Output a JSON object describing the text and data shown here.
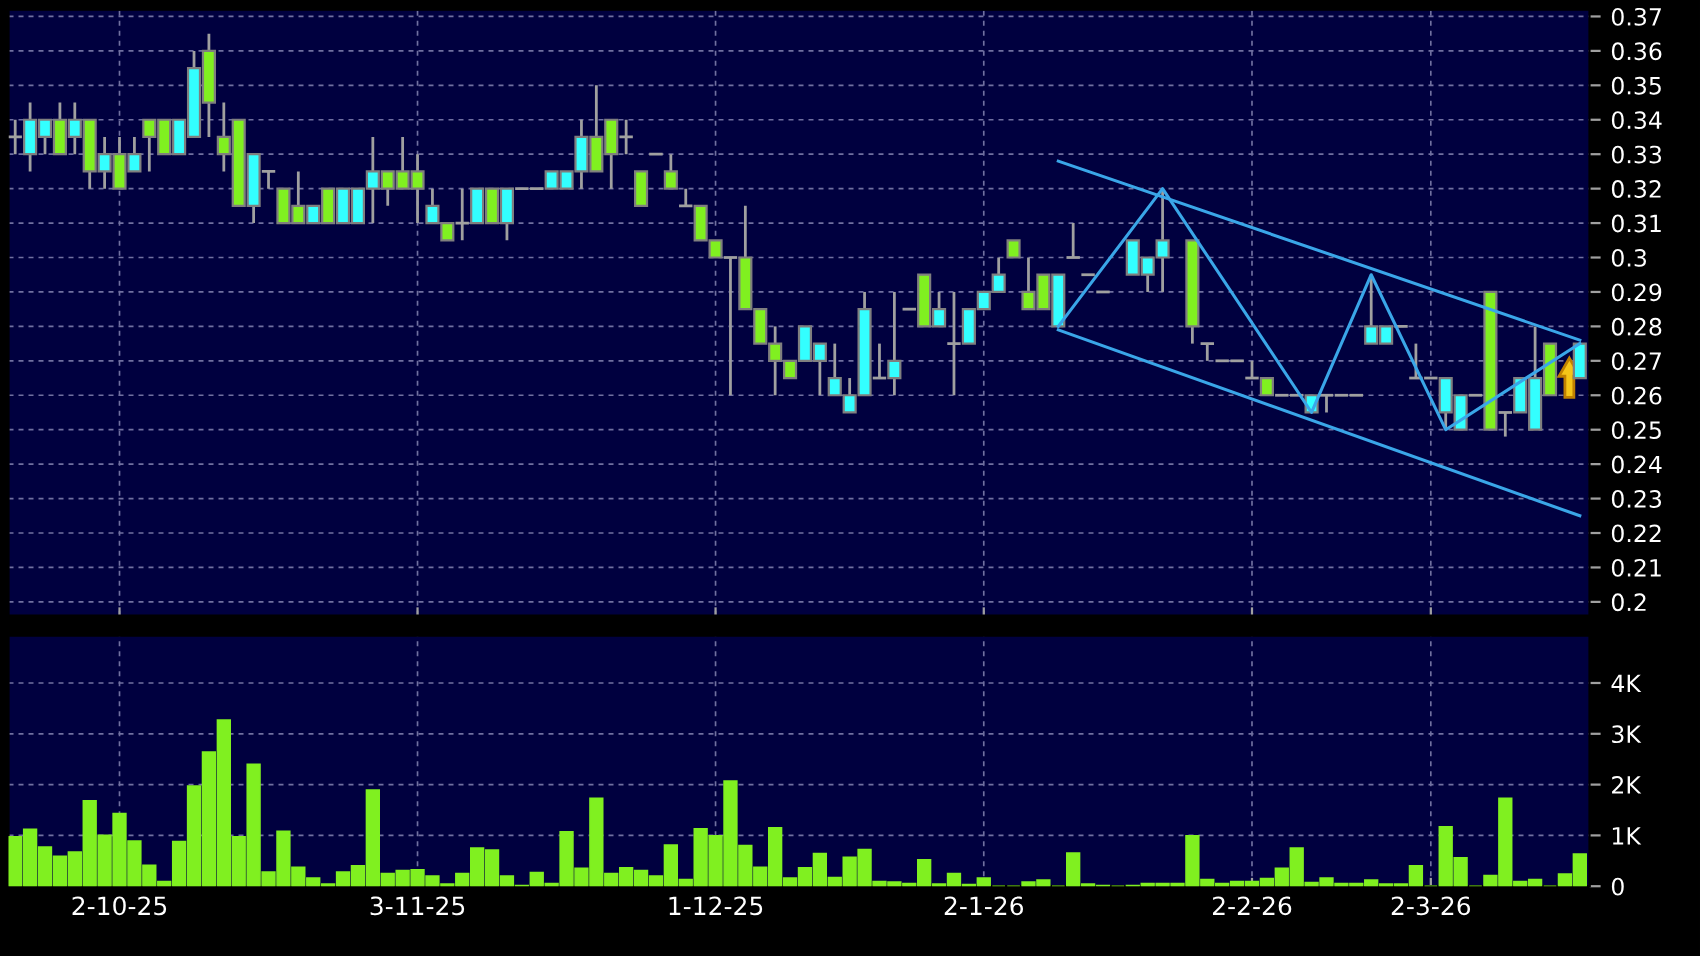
{
  "chart_data": [
    {
      "type": "candlestick",
      "tick_labels": "y",
      "grid": true,
      "categories": [
        null,
        null,
        null,
        null,
        null,
        null,
        null,
        null,
        null,
        null,
        null,
        null,
        null,
        null,
        null,
        null,
        null,
        null,
        null,
        null,
        null,
        null,
        null,
        null,
        null,
        null,
        null,
        null,
        null,
        null,
        null,
        null,
        null,
        null,
        null,
        null,
        null,
        null,
        null,
        null,
        null,
        null,
        null,
        null,
        null,
        null,
        null,
        null,
        null,
        null,
        null,
        null,
        null,
        null,
        null,
        null,
        null,
        null,
        null,
        null,
        null,
        null,
        null,
        null,
        null,
        null,
        null,
        null,
        null,
        null,
        null,
        null,
        null,
        null,
        null,
        null,
        null,
        null,
        null,
        null,
        null,
        null,
        null,
        null,
        null,
        null,
        null,
        null,
        null,
        null,
        null,
        null,
        null,
        null,
        null,
        null,
        null,
        null,
        null,
        null,
        null,
        null,
        null,
        null,
        null,
        null
      ],
      "ylim": [
        0.196,
        0.372
      ],
      "yticks": [
        0.2,
        0.21,
        0.22,
        0.23,
        0.24,
        0.25,
        0.26,
        0.27,
        0.28,
        0.29,
        0.3,
        0.31,
        0.32,
        0.33,
        0.34,
        0.35,
        0.36,
        0.37
      ],
      "ohlc": [
        [
          0.335,
          0.34,
          0.33,
          0.335
        ],
        [
          0.33,
          0.345,
          0.325,
          0.34
        ],
        [
          0.335,
          0.34,
          0.33,
          0.34
        ],
        [
          0.34,
          0.345,
          0.33,
          0.33
        ],
        [
          0.335,
          0.345,
          0.33,
          0.34
        ],
        [
          0.34,
          0.34,
          0.32,
          0.325
        ],
        [
          0.325,
          0.335,
          0.32,
          0.33
        ],
        [
          0.33,
          0.335,
          0.32,
          0.32
        ],
        [
          0.325,
          0.335,
          0.325,
          0.33
        ],
        [
          0.34,
          0.34,
          0.325,
          0.335
        ],
        [
          0.34,
          0.34,
          0.33,
          0.33
        ],
        [
          0.33,
          0.34,
          0.33,
          0.34
        ],
        [
          0.335,
          0.36,
          0.335,
          0.355
        ],
        [
          0.36,
          0.365,
          0.335,
          0.345
        ],
        [
          0.335,
          0.345,
          0.325,
          0.33
        ],
        [
          0.34,
          0.34,
          0.315,
          0.315
        ],
        [
          0.315,
          0.33,
          0.31,
          0.33
        ],
        [
          0.325,
          0.325,
          0.32,
          0.325
        ],
        [
          0.32,
          0.32,
          0.31,
          0.31
        ],
        [
          0.315,
          0.325,
          0.31,
          0.31
        ],
        [
          0.31,
          0.315,
          0.31,
          0.315
        ],
        [
          0.32,
          0.32,
          0.31,
          0.31
        ],
        [
          0.31,
          0.32,
          0.31,
          0.32
        ],
        [
          0.31,
          0.32,
          0.31,
          0.32
        ],
        [
          0.32,
          0.335,
          0.31,
          0.325
        ],
        [
          0.325,
          0.325,
          0.315,
          0.32
        ],
        [
          0.325,
          0.335,
          0.32,
          0.32
        ],
        [
          0.325,
          0.33,
          0.31,
          0.32
        ],
        [
          0.31,
          0.32,
          0.31,
          0.315
        ],
        [
          0.31,
          0.31,
          0.305,
          0.305
        ],
        [
          0.31,
          0.32,
          0.305,
          0.31
        ],
        [
          0.31,
          0.32,
          0.31,
          0.32
        ],
        [
          0.32,
          0.32,
          0.31,
          0.31
        ],
        [
          0.31,
          0.32,
          0.305,
          0.32
        ],
        [
          0.32,
          0.32,
          0.32,
          0.32
        ],
        [
          0.32,
          0.32,
          0.32,
          0.32
        ],
        [
          0.32,
          0.325,
          0.32,
          0.325
        ],
        [
          0.32,
          0.325,
          0.32,
          0.325
        ],
        [
          0.325,
          0.34,
          0.32,
          0.335
        ],
        [
          0.335,
          0.35,
          0.325,
          0.325
        ],
        [
          0.34,
          0.34,
          0.32,
          0.33
        ],
        [
          0.335,
          0.34,
          0.33,
          0.335
        ],
        [
          0.325,
          0.325,
          0.315,
          0.315
        ],
        [
          0.33,
          0.33,
          0.33,
          0.33
        ],
        [
          0.325,
          0.33,
          0.32,
          0.32
        ],
        [
          0.315,
          0.32,
          0.315,
          0.315
        ],
        [
          0.315,
          0.315,
          0.305,
          0.305
        ],
        [
          0.305,
          0.305,
          0.3,
          0.3
        ],
        [
          0.3,
          0.3,
          0.26,
          0.3
        ],
        [
          0.3,
          0.315,
          0.285,
          0.285
        ],
        [
          0.285,
          0.285,
          0.275,
          0.275
        ],
        [
          0.275,
          0.28,
          0.26,
          0.27
        ],
        [
          0.27,
          0.27,
          0.265,
          0.265
        ],
        [
          0.27,
          0.28,
          0.27,
          0.28
        ],
        [
          0.27,
          0.275,
          0.26,
          0.275
        ],
        [
          0.26,
          0.275,
          0.26,
          0.265
        ],
        [
          0.255,
          0.265,
          0.255,
          0.26
        ],
        [
          0.26,
          0.29,
          0.26,
          0.285
        ],
        [
          0.265,
          0.275,
          0.265,
          0.265
        ],
        [
          0.265,
          0.29,
          0.26,
          0.27
        ],
        [
          0.285,
          0.285,
          0.285,
          0.285
        ],
        [
          0.295,
          0.295,
          0.28,
          0.28
        ],
        [
          0.28,
          0.29,
          0.28,
          0.285
        ],
        [
          0.275,
          0.29,
          0.26,
          0.275
        ],
        [
          0.275,
          0.285,
          0.275,
          0.285
        ],
        [
          0.285,
          0.29,
          0.285,
          0.29
        ],
        [
          0.29,
          0.3,
          0.29,
          0.295
        ],
        [
          0.305,
          0.305,
          0.3,
          0.3
        ],
        [
          0.29,
          0.3,
          0.285,
          0.285
        ],
        [
          0.295,
          0.295,
          0.285,
          0.285
        ],
        [
          0.28,
          0.295,
          0.28,
          0.295
        ],
        [
          0.3,
          0.31,
          0.3,
          0.3
        ],
        [
          0.295,
          0.295,
          0.295,
          0.295
        ],
        [
          0.29,
          0.29,
          0.29,
          0.29
        ],
        null,
        [
          0.295,
          0.305,
          0.295,
          0.305
        ],
        [
          0.295,
          0.3,
          0.29,
          0.3
        ],
        [
          0.3,
          0.32,
          0.29,
          0.305
        ],
        null,
        [
          0.305,
          0.305,
          0.275,
          0.28
        ],
        [
          0.275,
          0.275,
          0.27,
          0.275
        ],
        [
          0.27,
          0.27,
          0.27,
          0.27
        ],
        [
          0.27,
          0.27,
          0.27,
          0.27
        ],
        [
          0.265,
          0.27,
          0.265,
          0.265
        ],
        [
          0.265,
          0.265,
          0.26,
          0.26
        ],
        [
          0.26,
          0.26,
          0.26,
          0.26
        ],
        [
          0.26,
          0.26,
          0.26,
          0.26
        ],
        [
          0.255,
          0.26,
          0.255,
          0.26
        ],
        [
          0.26,
          0.26,
          0.255,
          0.26
        ],
        [
          0.26,
          0.26,
          0.26,
          0.26
        ],
        [
          0.26,
          0.26,
          0.26,
          0.26
        ],
        [
          0.275,
          0.295,
          0.275,
          0.28
        ],
        [
          0.275,
          0.28,
          0.275,
          0.28
        ],
        [
          0.28,
          0.28,
          0.28,
          0.28
        ],
        [
          0.265,
          0.275,
          0.265,
          0.265
        ],
        [
          0.265,
          0.265,
          0.265,
          0.265
        ],
        [
          0.255,
          0.265,
          0.25,
          0.265
        ],
        [
          0.25,
          0.26,
          0.25,
          0.26
        ],
        [
          0.26,
          0.26,
          0.26,
          0.26
        ],
        [
          0.29,
          0.29,
          0.25,
          0.25
        ],
        [
          0.255,
          0.255,
          0.248,
          0.255
        ],
        [
          0.255,
          0.265,
          0.255,
          0.265
        ],
        [
          0.25,
          0.28,
          0.25,
          0.265
        ],
        [
          0.275,
          0.275,
          0.26,
          0.26
        ],
        null,
        [
          0.265,
          0.275,
          0.265,
          0.275
        ]
      ],
      "colors": [
        "#a0a0a0",
        "#33ffff",
        "#33ffff",
        "#80f020",
        "#33ffff",
        "#80f020",
        "#33ffff",
        "#80f020",
        "#33ffff",
        "#80f020",
        "#80f020",
        "#33ffff",
        "#33ffff",
        "#80f020",
        "#80f020",
        "#80f020",
        "#33ffff",
        "#a0a0a0",
        "#80f020",
        "#80f020",
        "#33ffff",
        "#80f020",
        "#33ffff",
        "#33ffff",
        "#33ffff",
        "#80f020",
        "#80f020",
        "#80f020",
        "#33ffff",
        "#80f020",
        "#a0a0a0",
        "#33ffff",
        "#80f020",
        "#33ffff",
        "#a0a0a0",
        "#a0a0a0",
        "#33ffff",
        "#33ffff",
        "#33ffff",
        "#80f020",
        "#80f020",
        "#a0a0a0",
        "#80f020",
        "#a0a0a0",
        "#80f020",
        "#a0a0a0",
        "#80f020",
        "#80f020",
        "#a0a0a0",
        "#80f020",
        "#80f020",
        "#80f020",
        "#80f020",
        "#33ffff",
        "#33ffff",
        "#33ffff",
        "#33ffff",
        "#33ffff",
        "#a0a0a0",
        "#33ffff",
        "#a0a0a0",
        "#80f020",
        "#33ffff",
        "#a0a0a0",
        "#33ffff",
        "#33ffff",
        "#33ffff",
        "#80f020",
        "#80f020",
        "#80f020",
        "#33ffff",
        "#a0a0a0",
        "#a0a0a0",
        "#a0a0a0",
        null,
        "#33ffff",
        "#33ffff",
        "#33ffff",
        null,
        "#80f020",
        "#a0a0a0",
        "#a0a0a0",
        "#a0a0a0",
        "#a0a0a0",
        "#80f020",
        "#a0a0a0",
        "#a0a0a0",
        "#33ffff",
        "#a0a0a0",
        "#a0a0a0",
        "#a0a0a0",
        "#33ffff",
        "#33ffff",
        "#a0a0a0",
        "#a0a0a0",
        "#a0a0a0",
        "#33ffff",
        "#33ffff",
        "#a0a0a0",
        "#80f020",
        "#a0a0a0",
        "#33ffff",
        "#33ffff",
        "#80f020",
        null,
        "#33ffff"
      ],
      "series": [
        {
          "type": "line",
          "color": "#3aa6e8",
          "values": [
            null,
            null,
            null,
            null,
            null,
            null,
            null,
            null,
            null,
            null,
            null,
            null,
            null,
            null,
            null,
            null,
            null,
            null,
            null,
            null,
            null,
            null,
            null,
            null,
            null,
            null,
            null,
            null,
            null,
            null,
            null,
            null,
            null,
            null,
            null,
            null,
            null,
            null,
            null,
            null,
            null,
            null,
            null,
            null,
            null,
            null,
            null,
            null,
            null,
            null,
            null,
            null,
            null,
            null,
            null,
            null,
            null,
            null,
            null,
            null,
            null,
            null,
            null,
            null,
            null,
            null,
            null,
            null,
            null,
            null,
            0.328,
            null,
            null,
            null,
            null,
            null,
            null,
            null,
            null,
            null,
            null,
            null,
            null,
            null,
            null,
            null,
            null,
            null,
            null,
            null,
            null,
            null,
            null,
            null,
            null,
            null,
            null,
            null,
            null,
            null,
            null,
            null,
            null,
            null,
            null,
            0.276
          ]
        },
        {
          "type": "line",
          "color": "#3aa6e8",
          "values": [
            null,
            null,
            null,
            null,
            null,
            null,
            null,
            null,
            null,
            null,
            null,
            null,
            null,
            null,
            null,
            null,
            null,
            null,
            null,
            null,
            null,
            null,
            null,
            null,
            null,
            null,
            null,
            null,
            null,
            null,
            null,
            null,
            null,
            null,
            null,
            null,
            null,
            null,
            null,
            null,
            null,
            null,
            null,
            null,
            null,
            null,
            null,
            null,
            null,
            null,
            null,
            null,
            null,
            null,
            null,
            null,
            null,
            null,
            null,
            null,
            null,
            null,
            null,
            null,
            null,
            null,
            null,
            null,
            null,
            null,
            0.279,
            null,
            null,
            null,
            null,
            null,
            null,
            null,
            null,
            null,
            null,
            null,
            null,
            null,
            null,
            null,
            null,
            null,
            null,
            null,
            null,
            null,
            null,
            null,
            null,
            null,
            null,
            null,
            null,
            null,
            null,
            null,
            null,
            null,
            null,
            0.225
          ]
        },
        {
          "type": "line",
          "color": "#3aa6e8",
          "values": [
            null,
            null,
            null,
            null,
            null,
            null,
            null,
            null,
            null,
            null,
            null,
            null,
            null,
            null,
            null,
            null,
            null,
            null,
            null,
            null,
            null,
            null,
            null,
            null,
            null,
            null,
            null,
            null,
            null,
            null,
            null,
            null,
            null,
            null,
            null,
            null,
            null,
            null,
            null,
            null,
            null,
            null,
            null,
            null,
            null,
            null,
            null,
            null,
            null,
            null,
            null,
            null,
            null,
            null,
            null,
            null,
            null,
            null,
            null,
            null,
            null,
            null,
            null,
            null,
            null,
            null,
            null,
            null,
            null,
            null,
            0.28,
            null,
            null,
            null,
            null,
            null,
            null,
            0.32,
            null,
            null,
            null,
            null,
            null,
            null,
            null,
            null,
            null,
            0.255,
            null,
            null,
            null,
            0.295,
            null,
            null,
            null,
            null,
            0.25,
            null,
            null,
            null,
            null,
            null,
            null,
            null,
            null,
            0.275
          ]
        }
      ]
    },
    {
      "type": "bar",
      "grid": true,
      "color": "#80f020",
      "categories": [
        null,
        null,
        null,
        null,
        null,
        null,
        null,
        "2-10-25",
        null,
        null,
        null,
        null,
        null,
        null,
        null,
        null,
        null,
        null,
        null,
        null,
        null,
        null,
        null,
        null,
        null,
        null,
        null,
        "3-11-25",
        null,
        null,
        null,
        null,
        null,
        null,
        null,
        null,
        null,
        null,
        null,
        null,
        null,
        null,
        null,
        null,
        null,
        null,
        null,
        "1-12-25",
        null,
        null,
        null,
        null,
        null,
        null,
        null,
        null,
        null,
        null,
        null,
        null,
        null,
        null,
        null,
        null,
        null,
        "2-1-26",
        null,
        null,
        null,
        null,
        null,
        null,
        null,
        null,
        null,
        null,
        null,
        null,
        null,
        null,
        null,
        null,
        null,
        "2-2-26",
        null,
        null,
        null,
        null,
        null,
        null,
        null,
        null,
        null,
        null,
        null,
        "2-3-26",
        null,
        null,
        null,
        null,
        null,
        null,
        null,
        null,
        null,
        null
      ],
      "ylim": [
        0,
        4930
      ],
      "yticks": [
        0,
        {
          "value": 1000,
          "label": "1K"
        },
        {
          "value": 2000,
          "label": "2K"
        },
        {
          "value": 3000,
          "label": "3K"
        },
        {
          "value": 4000,
          "label": "4K"
        }
      ],
      "values": [
        970,
        1120,
        770,
        590,
        670,
        1680,
        1000,
        1430,
        890,
        410,
        90,
        880,
        1970,
        2640,
        3270,
        970,
        2400,
        280,
        1080,
        370,
        160,
        40,
        280,
        400,
        1890,
        250,
        310,
        320,
        200,
        40,
        250,
        750,
        710,
        200,
        10,
        270,
        50,
        1070,
        350,
        1730,
        250,
        360,
        310,
        200,
        810,
        130,
        1130,
        990,
        2070,
        800,
        370,
        1150,
        160,
        360,
        640,
        170,
        570,
        720,
        90,
        80,
        50,
        520,
        40,
        250,
        30,
        160,
        0,
        0,
        80,
        120,
        0,
        650,
        40,
        10,
        0,
        10,
        50,
        50,
        50,
        990,
        130,
        50,
        90,
        90,
        150,
        350,
        750,
        70,
        160,
        50,
        50,
        120,
        40,
        40,
        400,
        0,
        1170,
        560,
        0,
        210,
        1730,
        90,
        130,
        0,
        240,
        630
      ]
    }
  ]
}
